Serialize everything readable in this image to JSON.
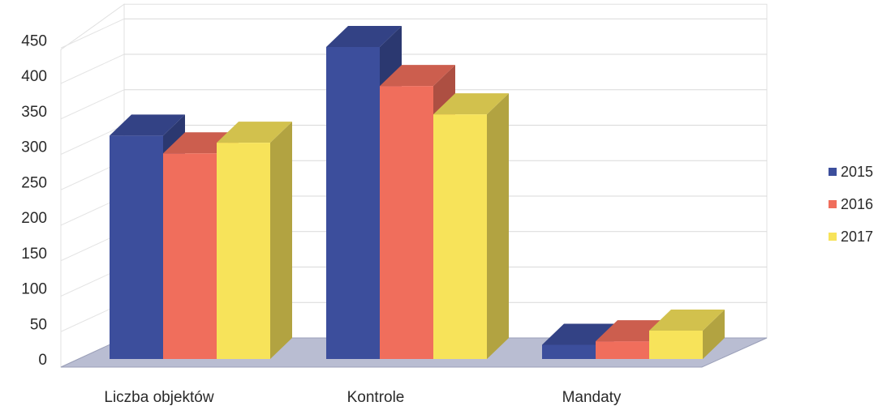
{
  "chart_data": {
    "type": "bar",
    "categories": [
      "Liczba objektów",
      "Kontrole",
      "Mandaty"
    ],
    "series": [
      {
        "name": "2015",
        "values": [
          315,
          440,
          20
        ],
        "color": "#3c4e9c"
      },
      {
        "name": "2016",
        "values": [
          290,
          385,
          25
        ],
        "color": "#f06e5c"
      },
      {
        "name": "2017",
        "values": [
          305,
          345,
          40
        ],
        "color": "#f7e35a"
      }
    ],
    "yticks": [
      "0",
      "50",
      "100",
      "150",
      "200",
      "250",
      "300",
      "350",
      "400",
      "450"
    ],
    "ylim": [
      0,
      450
    ],
    "grid": true,
    "legend_position": "right",
    "style": "3d-clustered-column"
  }
}
